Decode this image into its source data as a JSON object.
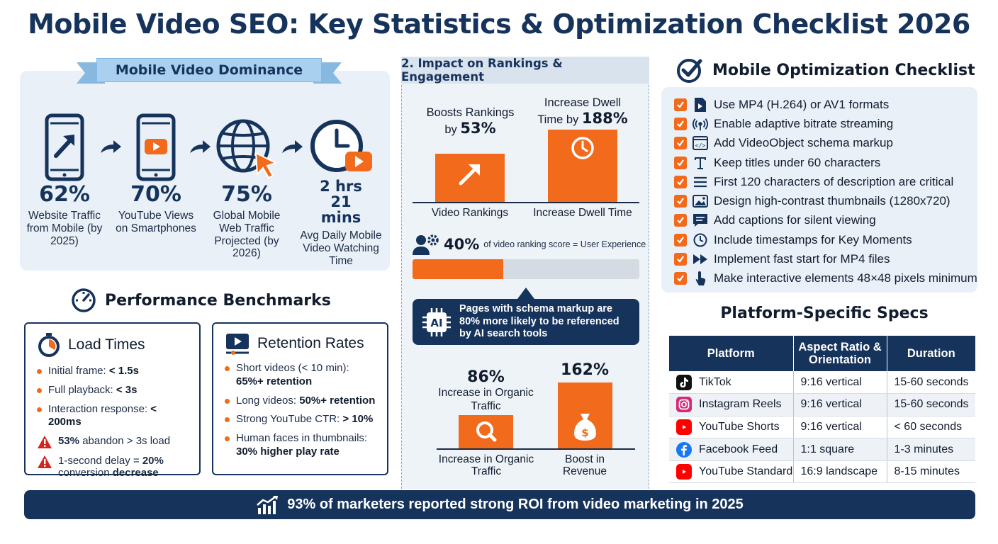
{
  "title": "Mobile Video SEO: Key Statistics & Optimization Checklist 2026",
  "dominance": {
    "heading": "Mobile Video Dominance",
    "stats": [
      {
        "value": "62%",
        "label": "Website Traffic from Mobile (by 2025)",
        "icon": "smartphone-arrow-icon"
      },
      {
        "value": "70%",
        "label": "YouTube Views on Smartphones",
        "icon": "smartphone-play-icon"
      },
      {
        "value": "75%",
        "label": "Global Mobile Web Traffic Projected (by 2026)",
        "icon": "globe-cursor-icon"
      },
      {
        "value": "2 hrs 21 mins",
        "label": "Avg Daily Mobile Video Watching Time",
        "icon": "clock-play-icon"
      }
    ]
  },
  "benchmarks": {
    "heading": "Performance Benchmarks",
    "load": {
      "title": "Load Times",
      "items": [
        {
          "text": "Initial frame: ",
          "bold": "< 1.5s"
        },
        {
          "text": "Full playback: ",
          "bold": "< 3s"
        },
        {
          "text": "Interaction response: ",
          "bold": "< 200ms"
        }
      ],
      "warnings": [
        {
          "bold": "53%",
          "text": " abandon > 3s load"
        },
        {
          "text": "1-second delay = ",
          "bold": "20%",
          "text2": " conversion ",
          "bold2": "decrease"
        }
      ]
    },
    "retention": {
      "title": "Retention Rates",
      "items": [
        {
          "text": "Short videos (< 10 min): ",
          "bold": "65%+ retention"
        },
        {
          "text": "Long videos: ",
          "bold": "50%+ retention"
        },
        {
          "text": "Strong YouTube CTR: ",
          "bold": "> 10%"
        },
        {
          "text": "Human faces in thumbnails: ",
          "bold": "30% higher play rate"
        }
      ]
    }
  },
  "impact": {
    "heading": "2. Impact on Rankings & Engagement",
    "rankings": {
      "pre": "Boosts Rankings by ",
      "value": "53%",
      "caption": "Video Rankings"
    },
    "dwell": {
      "pre": "Increase Dwell Time by ",
      "value": "188%",
      "caption": "Increase Dwell Time"
    },
    "ux": {
      "value": "40%",
      "label": "of video ranking score = User Experience",
      "fraction": 0.4
    },
    "ai_callout": "Pages with schema markup are 80% more likely to be referenced by AI search tools",
    "ai_badge": "AI",
    "organic": {
      "value": "86%",
      "label": "Increase in Organic Traffic",
      "caption": "Increase in Organic Traffic"
    },
    "revenue": {
      "value": "162%",
      "caption": "Boost in Revenue"
    }
  },
  "checklist": {
    "heading": "Mobile Optimization Checklist",
    "items": [
      {
        "text": "Use MP4 (H.264) or AV1 formats",
        "icon": "file-play-icon"
      },
      {
        "text": "Enable adaptive bitrate streaming",
        "icon": "broadcast-icon"
      },
      {
        "text": "Add VideoObject schema markup",
        "icon": "code-icon"
      },
      {
        "text": "Keep titles under 60 characters",
        "icon": "text-icon"
      },
      {
        "text": "First 120 characters of description are critical",
        "icon": "lines-icon"
      },
      {
        "text": "Design high-contrast thumbnails (1280x720)",
        "icon": "image-icon"
      },
      {
        "text": "Add captions for silent viewing",
        "icon": "caption-icon"
      },
      {
        "text": "Include timestamps for Key Moments",
        "icon": "clock-icon"
      },
      {
        "text": "Implement fast start for MP4 files",
        "icon": "fast-forward-icon"
      },
      {
        "text": "Make interactive elements 48×48 pixels minimum",
        "icon": "tap-icon"
      }
    ]
  },
  "specs": {
    "heading": "Platform-Specific Specs",
    "columns": [
      "Platform",
      "Aspect Ratio & Orientation",
      "Duration"
    ],
    "rows": [
      {
        "platform": "TikTok",
        "ratio": "9:16 vertical",
        "duration": "15-60 seconds",
        "icon": "tiktok-icon",
        "color": "#111111"
      },
      {
        "platform": "Instagram Reels",
        "ratio": "9:16 vertical",
        "duration": "15-60 seconds",
        "icon": "instagram-icon",
        "color": "#d62976"
      },
      {
        "platform": "YouTube Shorts",
        "ratio": "9:16 vertical",
        "duration": "< 60 seconds",
        "icon": "youtube-shorts-icon",
        "color": "#ff0000"
      },
      {
        "platform": "Facebook Feed",
        "ratio": "1:1 square",
        "duration": "1-3 minutes",
        "icon": "facebook-icon",
        "color": "#1877f2"
      },
      {
        "platform": "YouTube Standard",
        "ratio": "16:9 landscape",
        "duration": "8-15 minutes",
        "icon": "youtube-icon",
        "color": "#ff0000"
      }
    ]
  },
  "footer": "93% of marketers reported strong ROI from video marketing in 2025",
  "colors": {
    "navy": "#16335c",
    "orange": "#f26a1b",
    "panel": "#e9f0f7"
  }
}
